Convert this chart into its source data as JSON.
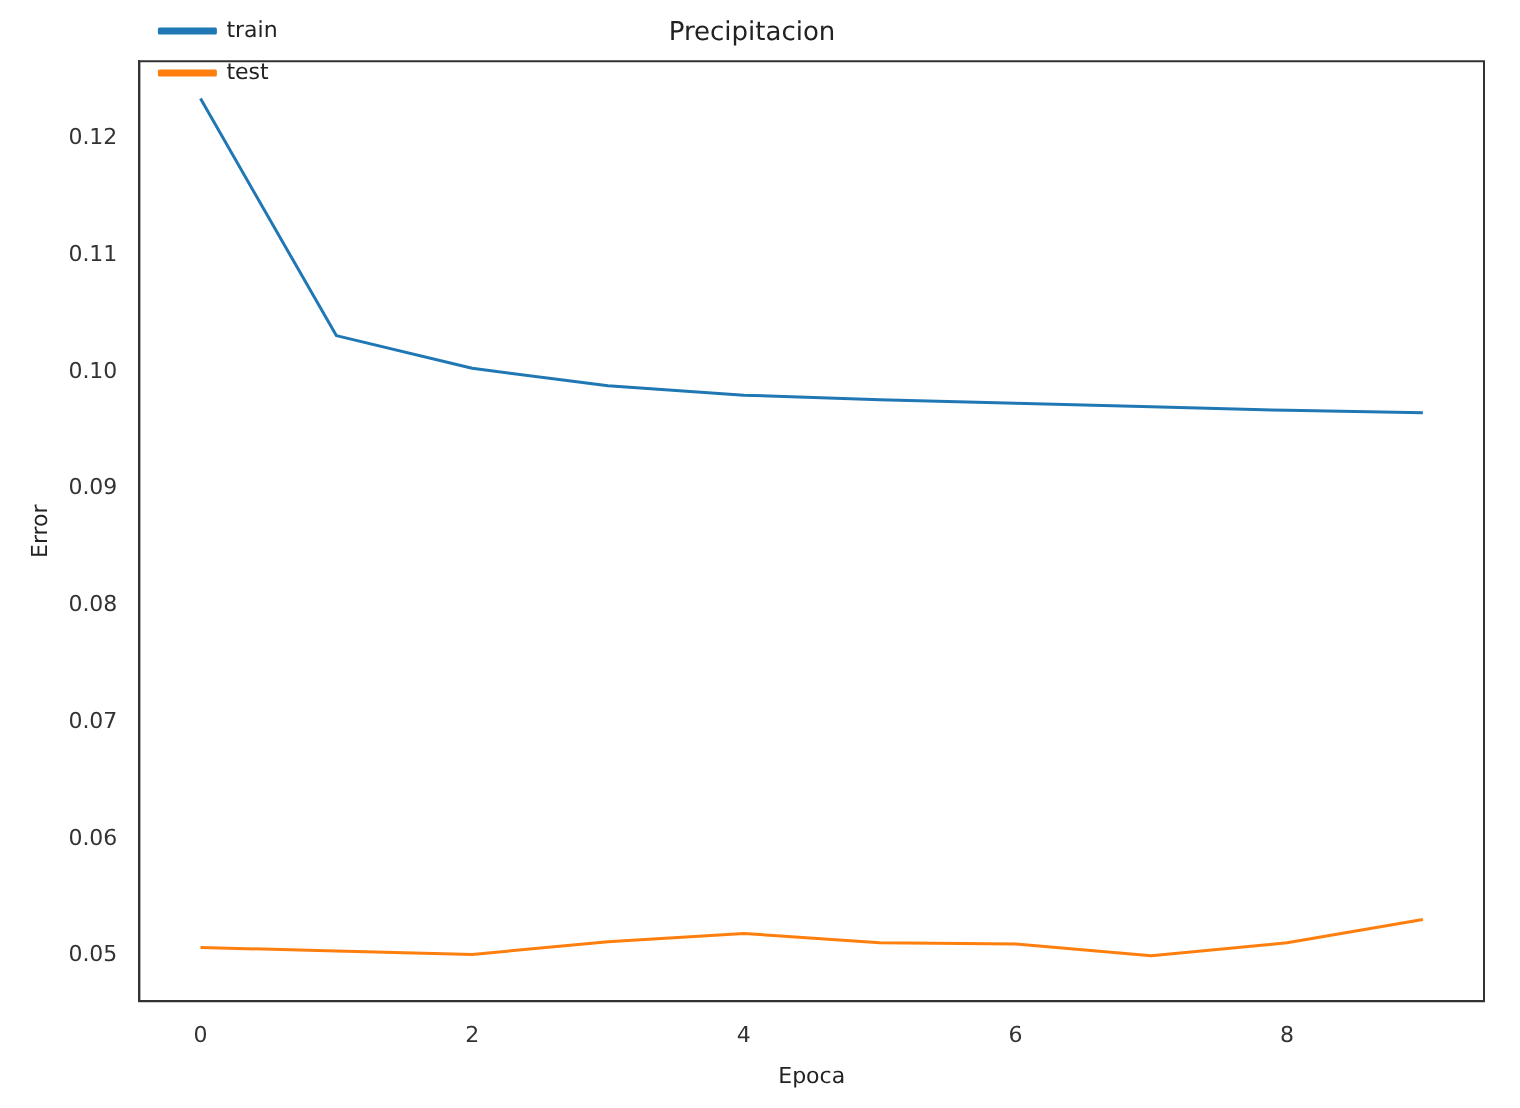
{
  "chart_data": {
    "type": "line",
    "title": "Precipitacion",
    "xlabel": "Epoca",
    "ylabel": "Error",
    "x": [
      0,
      1,
      2,
      3,
      4,
      5,
      6,
      7,
      8,
      9
    ],
    "series": [
      {
        "name": "train",
        "color": "#1f77b4",
        "values": [
          0.1234,
          0.1031,
          0.1003,
          0.0988,
          0.098,
          0.0976,
          0.0973,
          0.097,
          0.0967,
          0.0965
        ]
      },
      {
        "name": "test",
        "color": "#ff7f0e",
        "values": [
          0.0507,
          0.0504,
          0.0501,
          0.0512,
          0.0519,
          0.0511,
          0.051,
          0.05,
          0.0511,
          0.0531
        ]
      }
    ],
    "xlim": [
      -0.45,
      9.45
    ],
    "xticks": [
      0,
      2,
      4,
      6,
      8
    ],
    "ylim": [
      0.0461,
      0.1266
    ],
    "yticks": [
      0.05,
      0.06,
      0.07,
      0.08,
      0.09,
      {
        "value": 0.1,
        "label": "0.10"
      },
      0.11,
      0.12
    ],
    "legend": "top left",
    "grid": false
  }
}
